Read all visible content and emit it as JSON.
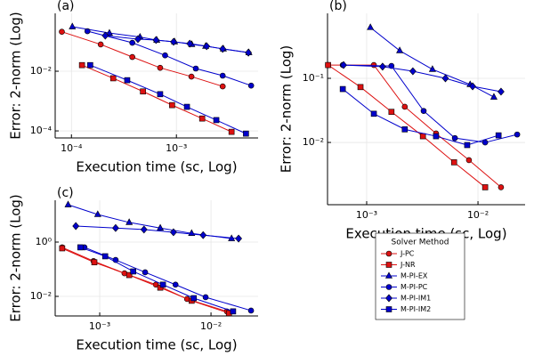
{
  "chart_data": [
    {
      "type": "line",
      "label": "(a)",
      "xlabel": "Execution time (sc, Log)",
      "ylabel": "Error: 2-norm (Log)",
      "log_x": true,
      "log_y": true,
      "grid": true,
      "xlim": [
        7e-05,
        0.006
      ],
      "ylim": [
        5.8e-05,
        0.87
      ],
      "xticks": [
        {
          "value": 0.0001,
          "label": "10⁻⁴"
        },
        {
          "value": 0.001,
          "label": "10⁻³"
        }
      ],
      "yticks": [
        {
          "value": 0.0001,
          "label": "10⁻⁴"
        },
        {
          "value": 0.01,
          "label": "10⁻²"
        }
      ],
      "series": [
        {
          "name": "J-PC",
          "color": "#dd1111",
          "marker": "circle",
          "x": [
            8.1e-05,
            0.00019,
            0.00038,
            0.0007,
            0.00139,
            0.00276
          ],
          "values": [
            0.21,
            0.079,
            0.03,
            0.013,
            0.0066,
            0.0031
          ]
        },
        {
          "name": "J-NR",
          "color": "#dd1111",
          "marker": "square",
          "x": [
            0.000126,
            0.00025,
            0.00048,
            0.00091,
            0.00176,
            0.00335
          ],
          "values": [
            0.016,
            0.0058,
            0.0021,
            0.00073,
            0.00026,
            9.3e-05
          ]
        },
        {
          "name": "M-PI-EX",
          "color": "#0000cc",
          "marker": "triangle",
          "x": [
            0.000102,
            0.00023,
            0.00045,
            0.00065,
            0.00096,
            0.0014,
            0.0019,
            0.0028,
            0.0049
          ],
          "values": [
            0.31,
            0.19,
            0.14,
            0.11,
            0.097,
            0.079,
            0.069,
            0.056,
            0.042
          ]
        },
        {
          "name": "M-PI-PC",
          "color": "#0000cc",
          "marker": "circle",
          "x": [
            0.000142,
            0.00038,
            0.00078,
            0.00153,
            0.00276,
            0.00515
          ],
          "values": [
            0.22,
            0.09,
            0.034,
            0.0123,
            0.0071,
            0.0033
          ]
        },
        {
          "name": "M-PI-IM1",
          "color": "#0000cc",
          "marker": "diamond",
          "x": [
            0.00021,
            0.00043,
            0.00064,
            0.00094,
            0.00134,
            0.00194,
            0.00276,
            0.00485
          ],
          "values": [
            0.156,
            0.119,
            0.111,
            0.097,
            0.084,
            0.069,
            0.056,
            0.042
          ]
        },
        {
          "name": "M-PI-IM2",
          "color": "#0000cc",
          "marker": "square",
          "x": [
            0.000151,
            0.00034,
            0.0007,
            0.00126,
            0.0024,
            0.0046
          ],
          "values": [
            0.016,
            0.005,
            0.0017,
            0.00064,
            0.00023,
            8.1e-05
          ]
        }
      ]
    },
    {
      "type": "line",
      "label": "(b)",
      "xlabel": "Execution time (sc, Log)",
      "ylabel": "Error: 2-norm (Log)",
      "log_x": true,
      "log_y": true,
      "grid": true,
      "xlim": [
        0.000445,
        0.0265
      ],
      "ylim": [
        0.00107,
        1.03
      ],
      "xticks": [
        {
          "value": 0.001,
          "label": "10⁻³"
        },
        {
          "value": 0.01,
          "label": "10⁻²"
        }
      ],
      "yticks": [
        {
          "value": 0.01,
          "label": "10⁻²"
        },
        {
          "value": 0.1,
          "label": "10⁻¹"
        }
      ],
      "legend_title": "Solver Method",
      "legend": "outside-bottom-right",
      "series": [
        {
          "name": "J-PC",
          "color": "#dd1111",
          "marker": "circle",
          "x": [
            0.00045,
            0.00116,
            0.0022,
            0.0042,
            0.0083,
            0.0161
          ],
          "values": [
            0.161,
            0.161,
            0.036,
            0.0138,
            0.0053,
            0.002
          ]
        },
        {
          "name": "J-NR",
          "color": "#dd1111",
          "marker": "square",
          "x": [
            0.00045,
            0.00088,
            0.00167,
            0.0032,
            0.0061,
            0.0116
          ],
          "values": [
            0.161,
            0.073,
            0.03,
            0.0125,
            0.0049,
            0.002
          ]
        },
        {
          "name": "M-PI-EX",
          "color": "#0000cc",
          "marker": "triangle",
          "x": [
            0.00108,
            0.00198,
            0.0039,
            0.0085,
            0.0139
          ],
          "values": [
            0.62,
            0.27,
            0.138,
            0.08,
            0.051
          ]
        },
        {
          "name": "M-PI-PC",
          "color": "#0000cc",
          "marker": "circle",
          "x": [
            0.00061,
            0.00167,
            0.00325,
            0.0062,
            0.0116,
            0.0225
          ],
          "values": [
            0.161,
            0.156,
            0.031,
            0.0117,
            0.01,
            0.0133
          ]
        },
        {
          "name": "M-PI-IM1",
          "color": "#0000cc",
          "marker": "diamond",
          "x": [
            0.00062,
            0.00139,
            0.0026,
            0.0051,
            0.00895,
            0.0161
          ],
          "values": [
            0.161,
            0.152,
            0.129,
            0.1,
            0.075,
            0.062
          ]
        },
        {
          "name": "M-PI-IM2",
          "color": "#0000cc",
          "marker": "square",
          "x": [
            0.00061,
            0.00116,
            0.0022,
            0.0042,
            0.008,
            0.0153
          ],
          "values": [
            0.068,
            0.028,
            0.016,
            0.0125,
            0.0091,
            0.0129
          ]
        }
      ]
    },
    {
      "type": "line",
      "label": "(c)",
      "xlabel": "Execution time (sc, Log)",
      "ylabel": "Error: 2-norm (Log)",
      "log_x": true,
      "log_y": true,
      "grid": true,
      "xlim": [
        0.000398,
        0.0265
      ],
      "ylim": [
        0.0019,
        34.8
      ],
      "xticks": [
        {
          "value": 0.001,
          "label": "10⁻³"
        },
        {
          "value": 0.01,
          "label": "10⁻²"
        }
      ],
      "yticks": [
        {
          "value": 0.01,
          "label": "10⁻²"
        },
        {
          "value": 1,
          "label": "10⁰"
        }
      ],
      "series": [
        {
          "name": "J-PC",
          "color": "#dd1111",
          "marker": "circle",
          "x": [
            0.00046,
            0.00088,
            0.00167,
            0.0032,
            0.0061,
            0.0139
          ],
          "values": [
            0.64,
            0.2,
            0.071,
            0.027,
            0.008,
            0.0028
          ]
        },
        {
          "name": "J-NR",
          "color": "#dd1111",
          "marker": "square",
          "x": [
            0.00046,
            0.000895,
            0.00184,
            0.0035,
            0.0067,
            0.0145
          ],
          "values": [
            0.59,
            0.18,
            0.061,
            0.021,
            0.0069,
            0.0024
          ]
        },
        {
          "name": "M-PI-EX",
          "color": "#0000cc",
          "marker": "triangle",
          "x": [
            0.00052,
            0.00096,
            0.00184,
            0.0035,
            0.0067,
            0.0153
          ],
          "values": [
            23.8,
            10.4,
            5.3,
            3.3,
            2.1,
            1.35
          ]
        },
        {
          "name": "M-PI-PC",
          "color": "#0000cc",
          "marker": "circle",
          "x": [
            0.00073,
            0.00139,
            0.00256,
            0.0048,
            0.00895,
            0.0229
          ],
          "values": [
            0.64,
            0.22,
            0.077,
            0.027,
            0.0093,
            0.003
          ]
        },
        {
          "name": "M-PI-IM1",
          "color": "#0000cc",
          "marker": "diamond",
          "x": [
            0.00061,
            0.00139,
            0.0025,
            0.0046,
            0.0085,
            0.0177
          ],
          "values": [
            3.9,
            3.3,
            2.9,
            2.3,
            1.8,
            1.35
          ]
        },
        {
          "name": "M-PI-IM2",
          "color": "#0000cc",
          "marker": "square",
          "x": [
            0.00067,
            0.00112,
            0.002,
            0.0037,
            0.007,
            0.0158
          ],
          "values": [
            0.64,
            0.3,
            0.083,
            0.027,
            0.0086,
            0.0028
          ]
        }
      ]
    }
  ]
}
